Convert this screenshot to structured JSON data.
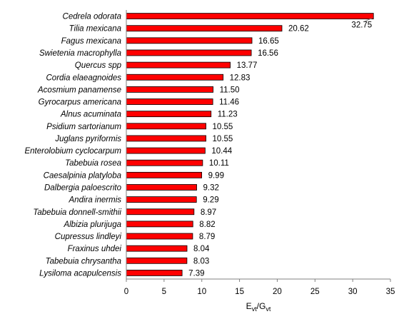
{
  "chart_data": {
    "type": "bar",
    "orientation": "horizontal",
    "categories": [
      "Cedrela odorata",
      "Tilia mexicana",
      "Fagus mexicana",
      "Swietenia macrophylla",
      "Quercus spp",
      "Cordia elaeagnoides",
      "Acosmium panamense",
      "Gyrocarpus americana",
      "Alnus acuminata",
      "Psidium sartorianum",
      "Juglans pyriformis",
      "Enterolobium cyclocarpum",
      "Tabebuia rosea",
      "Caesalpinia platyloba",
      "Dalbergia paloescrito",
      "Andira inermis",
      "Tabebuia donnell-smithii",
      "Albizia plurijuga",
      "Cupressus lindleyi",
      "Fraxinus uhdei",
      "Tabebuia chrysantha",
      "Lysiloma acapulcensis"
    ],
    "values": [
      32.75,
      20.62,
      16.65,
      16.56,
      13.77,
      12.83,
      11.5,
      11.46,
      11.23,
      10.55,
      10.55,
      10.44,
      10.11,
      9.99,
      9.32,
      9.29,
      8.97,
      8.82,
      8.79,
      8.04,
      8.03,
      7.39
    ],
    "value_labels": [
      "32.75",
      "20.62",
      "16.65",
      "16.56",
      "13.77",
      "12.83",
      "11.50",
      "11.46",
      "11.23",
      "10.55",
      "10.55",
      "10.44",
      "10.11",
      "9.99",
      "9.32",
      "9.29",
      "8.97",
      "8.82",
      "8.79",
      "8.04",
      "8.03",
      "7.39"
    ],
    "xlabel_main": "E",
    "xlabel_sub1": "vt",
    "xlabel_mid": "/G",
    "xlabel_sub2": "vt",
    "xlim": [
      0,
      35
    ],
    "xticks": [
      0,
      5,
      10,
      15,
      20,
      25,
      30,
      35
    ],
    "bar_color": "#ff0000",
    "bar_edge_color": "#000000",
    "grid": false
  }
}
